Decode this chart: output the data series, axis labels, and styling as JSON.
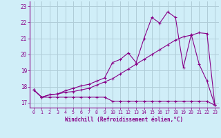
{
  "xlabel": "Windchill (Refroidissement éolien,°C)",
  "bg_color": "#d0eef8",
  "grid_color": "#b0ccd8",
  "line_color": "#880088",
  "xlim": [
    -0.5,
    23.5
  ],
  "ylim": [
    16.7,
    23.3
  ],
  "yticks": [
    17,
    18,
    19,
    20,
    21,
    22,
    23
  ],
  "xticks": [
    0,
    1,
    2,
    3,
    4,
    5,
    6,
    7,
    8,
    9,
    10,
    11,
    12,
    13,
    14,
    15,
    16,
    17,
    18,
    19,
    20,
    21,
    22,
    23
  ],
  "series1_x": [
    0,
    1,
    2,
    3,
    4,
    5,
    6,
    7,
    8,
    9,
    10,
    11,
    12,
    13,
    14,
    15,
    16,
    17,
    18,
    19,
    20,
    21,
    22,
    23
  ],
  "series1_y": [
    17.8,
    17.35,
    17.35,
    17.35,
    17.35,
    17.35,
    17.35,
    17.35,
    17.35,
    17.35,
    17.1,
    17.1,
    17.1,
    17.1,
    17.1,
    17.1,
    17.1,
    17.1,
    17.1,
    17.1,
    17.1,
    17.1,
    17.1,
    16.85
  ],
  "series2_x": [
    0,
    1,
    2,
    3,
    4,
    5,
    6,
    7,
    8,
    9,
    10,
    11,
    12,
    13,
    14,
    15,
    16,
    17,
    18,
    19,
    20,
    21,
    22,
    23
  ],
  "series2_y": [
    17.8,
    17.35,
    17.5,
    17.55,
    17.65,
    17.7,
    17.8,
    17.9,
    18.1,
    18.3,
    18.5,
    18.8,
    19.1,
    19.4,
    19.7,
    20.0,
    20.3,
    20.6,
    20.9,
    21.1,
    21.2,
    21.35,
    21.3,
    16.85
  ],
  "series3_x": [
    0,
    1,
    2,
    3,
    4,
    5,
    6,
    7,
    8,
    9,
    10,
    11,
    12,
    13,
    14,
    15,
    16,
    17,
    18,
    19,
    20,
    21,
    22,
    23
  ],
  "series3_y": [
    17.8,
    17.35,
    17.5,
    17.55,
    17.75,
    17.9,
    18.05,
    18.15,
    18.35,
    18.55,
    19.5,
    19.7,
    20.1,
    19.5,
    21.0,
    22.3,
    21.95,
    22.65,
    22.3,
    19.2,
    21.25,
    19.4,
    18.35,
    16.85
  ]
}
